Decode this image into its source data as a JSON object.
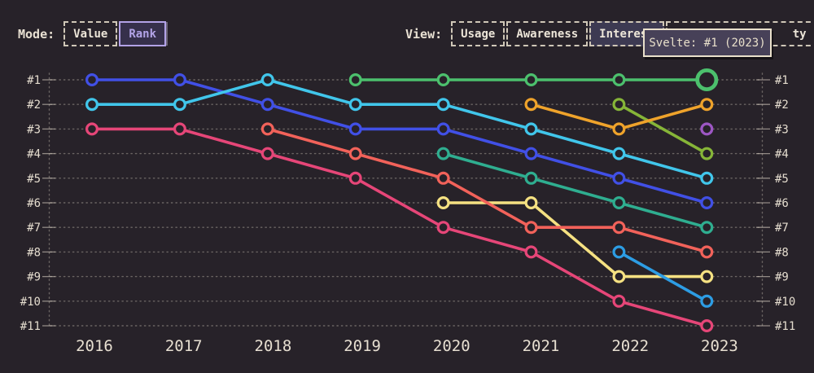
{
  "toolbar": {
    "mode": {
      "label": "Mode:",
      "options": [
        {
          "label": "Value",
          "selected": false
        },
        {
          "label": "Rank",
          "selected": true
        }
      ]
    },
    "view": {
      "label": "View:",
      "options": [
        {
          "label": "Usage",
          "selected": false
        },
        {
          "label": "Awareness",
          "selected": false
        },
        {
          "label": "Interest",
          "selected": true
        },
        {
          "label_visible": "ty",
          "selected": false
        }
      ]
    }
  },
  "tooltip": {
    "text": "Svelte: #1 (2023)"
  },
  "colors": {
    "background": "#272229",
    "grid": "rgba(217,209,195,0.38)",
    "tick": "rgba(217,209,195,0.6)",
    "axis_label": "#e4dcce",
    "year_label": "#e7dfd1"
  },
  "chart_data": {
    "type": "line",
    "subtype": "bump-rank",
    "x": [
      2016,
      2017,
      2018,
      2019,
      2020,
      2021,
      2022,
      2023
    ],
    "year_labels": [
      "2016",
      "2017",
      "2018",
      "2019",
      "2020",
      "2021",
      "2022",
      "2023"
    ],
    "rank_labels": [
      "#1",
      "#2",
      "#3",
      "#4",
      "#5",
      "#6",
      "#7",
      "#8",
      "#9",
      "#10",
      "#11"
    ],
    "y_axis": {
      "inverted": true,
      "range": [
        1,
        11
      ],
      "grid": "dotted",
      "labels_both_sides": true
    },
    "legend": "none",
    "series": [
      {
        "name": "",
        "color_name": "royal-blue",
        "color": "#4150e6",
        "points": [
          [
            2016,
            1
          ],
          [
            2017,
            1
          ],
          [
            2018,
            2
          ],
          [
            2019,
            3
          ],
          [
            2020,
            3
          ],
          [
            2021,
            4
          ],
          [
            2022,
            5
          ],
          [
            2023,
            6
          ]
        ]
      },
      {
        "name": "",
        "color_name": "cyan",
        "color": "#41c6eb",
        "points": [
          [
            2016,
            2
          ],
          [
            2017,
            2
          ],
          [
            2018,
            1
          ],
          [
            2019,
            2
          ],
          [
            2020,
            2
          ],
          [
            2021,
            3
          ],
          [
            2022,
            4
          ],
          [
            2023,
            5
          ]
        ]
      },
      {
        "name": "",
        "color_name": "pink",
        "color": "#e64678",
        "points": [
          [
            2016,
            3
          ],
          [
            2017,
            3
          ],
          [
            2018,
            4
          ],
          [
            2019,
            5
          ],
          [
            2020,
            7
          ],
          [
            2021,
            8
          ],
          [
            2022,
            10
          ],
          [
            2023,
            11
          ]
        ]
      },
      {
        "name": "",
        "color_name": "teal",
        "color": "#2fae90",
        "points": [
          [
            2020,
            4
          ],
          [
            2021,
            5
          ],
          [
            2022,
            6
          ],
          [
            2023,
            7
          ]
        ]
      },
      {
        "name": "",
        "color_name": "yellow",
        "color": "#f5e182",
        "points": [
          [
            2020,
            6
          ],
          [
            2021,
            6
          ],
          [
            2022,
            9
          ],
          [
            2023,
            9
          ]
        ]
      },
      {
        "name": "",
        "color_name": "salmon",
        "color": "#f2625a",
        "points": [
          [
            2018,
            3
          ],
          [
            2019,
            4
          ],
          [
            2020,
            5
          ],
          [
            2021,
            7
          ],
          [
            2022,
            7
          ],
          [
            2023,
            8
          ]
        ]
      },
      {
        "name": "",
        "color_name": "sky-blue",
        "color": "#2d9de4",
        "points": [
          [
            2022,
            8
          ],
          [
            2023,
            10
          ]
        ]
      },
      {
        "name": "",
        "color_name": "olive-green",
        "color": "#86b538",
        "points": [
          [
            2022,
            2
          ],
          [
            2023,
            4
          ]
        ]
      },
      {
        "name": "",
        "color_name": "orange",
        "color": "#efa32b",
        "points": [
          [
            2021,
            2
          ],
          [
            2022,
            3
          ],
          [
            2023,
            2
          ]
        ]
      },
      {
        "name": "",
        "color_name": "purple",
        "color": "#9d57c4",
        "points": [
          [
            2023,
            3
          ]
        ]
      },
      {
        "name": "Svelte",
        "color_name": "green",
        "color": "#4cc06d",
        "points": [
          [
            2019,
            1
          ],
          [
            2020,
            1
          ],
          [
            2021,
            1
          ],
          [
            2022,
            1
          ],
          [
            2023,
            1
          ]
        ],
        "highlight_last": true
      }
    ],
    "highlight": {
      "series": "Svelte",
      "year": 2023,
      "rank": 1
    }
  }
}
